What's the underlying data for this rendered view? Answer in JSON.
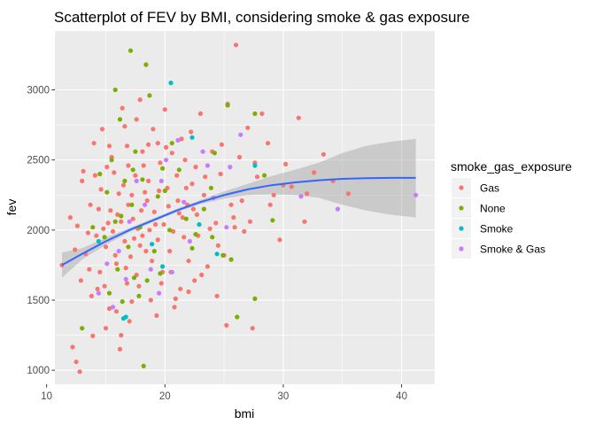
{
  "chart_data": {
    "type": "scatter",
    "title": "Scatterplot of FEV by BMI, considering smoke & gas exposure",
    "xlabel": "bmi",
    "ylabel": "fev",
    "xlim": [
      10.7,
      42.8
    ],
    "ylim": [
      900,
      3420
    ],
    "x_ticks": [
      10,
      20,
      30,
      40
    ],
    "y_ticks": [
      1000,
      1500,
      2000,
      2500,
      3000
    ],
    "grid": true,
    "legend": {
      "title": "smoke_gas_exposure",
      "position": "right",
      "entries": [
        "Gas",
        "None",
        "Smoke",
        "Smoke & Gas"
      ]
    },
    "colors": {
      "Gas": "#F8766D",
      "None": "#7CAE00",
      "Smoke": "#00BFC4",
      "Smoke & Gas": "#C77CFF",
      "smooth": "#3366FF",
      "band": "#999999"
    },
    "smooth": {
      "method": "loess",
      "x": [
        11.3,
        13,
        15,
        17,
        19,
        21,
        23,
        25,
        27,
        29,
        31,
        33,
        35,
        37,
        39,
        41.2
      ],
      "y": [
        1750,
        1830,
        1920,
        2000,
        2070,
        2140,
        2200,
        2250,
        2290,
        2320,
        2340,
        2355,
        2365,
        2370,
        2372,
        2372
      ],
      "ymin": [
        1660,
        1790,
        1895,
        1985,
        2058,
        2128,
        2185,
        2225,
        2250,
        2255,
        2250,
        2230,
        2180,
        2140,
        2110,
        2090
      ],
      "ymax": [
        1840,
        1870,
        1945,
        2015,
        2082,
        2152,
        2215,
        2275,
        2330,
        2385,
        2430,
        2480,
        2550,
        2600,
        2630,
        2650
      ]
    },
    "series": [
      {
        "name": "Gas",
        "points": [
          [
            11.3,
            1750
          ],
          [
            12.2,
            1165
          ],
          [
            12.5,
            1060
          ],
          [
            12.8,
            990
          ],
          [
            13.0,
            2350
          ],
          [
            12.6,
            2030
          ],
          [
            12.9,
            1640
          ],
          [
            13.3,
            1830
          ],
          [
            13.8,
            1530
          ],
          [
            13.9,
            1245
          ],
          [
            14.0,
            2620
          ],
          [
            14.4,
            2150
          ],
          [
            14.7,
            2720
          ],
          [
            14.9,
            1600
          ],
          [
            15.1,
            2450
          ],
          [
            15.3,
            1440
          ],
          [
            15.5,
            2520
          ],
          [
            15.8,
            1820
          ],
          [
            16.1,
            2260
          ],
          [
            16.2,
            1150
          ],
          [
            16.4,
            2870
          ],
          [
            16.7,
            1730
          ],
          [
            16.8,
            2600
          ],
          [
            17.0,
            1350
          ],
          [
            17.2,
            2250
          ],
          [
            17.4,
            1940
          ],
          [
            17.6,
            2790
          ],
          [
            17.8,
            1600
          ],
          [
            18.0,
            2140
          ],
          [
            18.2,
            2460
          ],
          [
            18.4,
            1850
          ],
          [
            18.6,
            2610
          ],
          [
            18.8,
            1500
          ],
          [
            19.0,
            2720
          ],
          [
            19.2,
            2040
          ],
          [
            19.4,
            1930
          ],
          [
            19.6,
            2480
          ],
          [
            19.8,
            1700
          ],
          [
            20.0,
            2860
          ],
          [
            20.2,
            2300
          ],
          [
            20.4,
            1850
          ],
          [
            20.6,
            2550
          ],
          [
            20.8,
            1450
          ],
          [
            21.0,
            2390
          ],
          [
            21.2,
            2120
          ],
          [
            21.4,
            2650
          ],
          [
            21.6,
            1950
          ],
          [
            21.8,
            2300
          ],
          [
            22.0,
            1780
          ],
          [
            22.2,
            2700
          ],
          [
            22.4,
            2150
          ],
          [
            22.6,
            2450
          ],
          [
            22.8,
            1960
          ],
          [
            23.0,
            2830
          ],
          [
            23.3,
            2250
          ],
          [
            23.6,
            1740
          ],
          [
            24.0,
            2560
          ],
          [
            24.3,
            2050
          ],
          [
            24.7,
            2400
          ],
          [
            25.0,
            1820
          ],
          [
            25.3,
            2900
          ],
          [
            25.6,
            2180
          ],
          [
            26.0,
            3320
          ],
          [
            26.3,
            2520
          ],
          [
            26.7,
            1990
          ],
          [
            27.0,
            2730
          ],
          [
            27.4,
            1300
          ],
          [
            27.8,
            2380
          ],
          [
            28.2,
            2830
          ],
          [
            28.7,
            2620
          ],
          [
            29.2,
            2250
          ],
          [
            29.7,
            1930
          ],
          [
            30.2,
            2470
          ],
          [
            30.7,
            2310
          ],
          [
            31.3,
            2800
          ],
          [
            31.8,
            2060
          ],
          [
            32.6,
            2410
          ],
          [
            33.4,
            2540
          ],
          [
            34.2,
            2350
          ],
          [
            35.5,
            2260
          ],
          [
            15.2,
            2050
          ],
          [
            15.6,
            1990
          ],
          [
            16.0,
            2110
          ],
          [
            16.3,
            2060
          ],
          [
            16.6,
            1920
          ],
          [
            16.9,
            2180
          ],
          [
            17.3,
            2080
          ],
          [
            17.7,
            2010
          ],
          [
            18.1,
            1960
          ],
          [
            18.5,
            2210
          ],
          [
            14.5,
            1700
          ],
          [
            15.0,
            1880
          ],
          [
            15.4,
            2140
          ],
          [
            15.9,
            1760
          ],
          [
            16.5,
            2320
          ],
          [
            17.1,
            1810
          ],
          [
            17.5,
            2390
          ],
          [
            17.9,
            1890
          ],
          [
            18.3,
            2270
          ],
          [
            18.7,
            2000
          ],
          [
            19.1,
            2130
          ],
          [
            19.5,
            2280
          ],
          [
            19.9,
            2040
          ],
          [
            20.3,
            2170
          ],
          [
            20.7,
            1990
          ],
          [
            21.1,
            2210
          ],
          [
            21.5,
            2090
          ],
          [
            21.9,
            2180
          ],
          [
            22.3,
            2330
          ],
          [
            22.7,
            2110
          ],
          [
            14.2,
            1960
          ],
          [
            14.6,
            2290
          ],
          [
            15.7,
            2410
          ],
          [
            16.8,
            1620
          ],
          [
            17.6,
            1680
          ],
          [
            18.9,
            1780
          ],
          [
            19.7,
            1620
          ],
          [
            20.5,
            1700
          ],
          [
            21.3,
            1580
          ],
          [
            22.5,
            1640
          ],
          [
            23.8,
            2010
          ],
          [
            24.5,
            1890
          ],
          [
            25.8,
            2090
          ],
          [
            26.5,
            2210
          ],
          [
            27.2,
            2060
          ],
          [
            13.5,
            1980
          ],
          [
            13.7,
            2180
          ],
          [
            14.8,
            2010
          ],
          [
            16.9,
            2460
          ],
          [
            18.6,
            2350
          ],
          [
            15.0,
            1300
          ],
          [
            15.9,
            1420
          ],
          [
            17.2,
            1490
          ],
          [
            19.3,
            1390
          ],
          [
            20.9,
            1510
          ],
          [
            22.0,
            1560
          ],
          [
            23.1,
            1680
          ],
          [
            24.4,
            1530
          ],
          [
            25.2,
            1320
          ],
          [
            16.3,
            1250
          ],
          [
            17.9,
            2930
          ],
          [
            19.4,
            2620
          ],
          [
            21.7,
            2500
          ],
          [
            23.4,
            2380
          ],
          [
            24.8,
            2610
          ],
          [
            25.9,
            2020
          ],
          [
            27.6,
            2480
          ],
          [
            28.9,
            2180
          ],
          [
            30.0,
            2320
          ],
          [
            32.0,
            2260
          ],
          [
            14.1,
            2390
          ],
          [
            15.3,
            2600
          ],
          [
            16.6,
            2740
          ],
          [
            18.1,
            2560
          ],
          [
            20.1,
            2590
          ],
          [
            12.0,
            2090
          ],
          [
            12.4,
            1860
          ],
          [
            13.1,
            2420
          ],
          [
            13.6,
            1720
          ],
          [
            14.3,
            1580
          ]
        ]
      },
      {
        "name": "None",
        "points": [
          [
            15.8,
            3000
          ],
          [
            17.1,
            3280
          ],
          [
            18.4,
            3180
          ],
          [
            18.7,
            2960
          ],
          [
            16.2,
            2790
          ],
          [
            17.5,
            2560
          ],
          [
            19.8,
            2440
          ],
          [
            25.3,
            2890
          ],
          [
            27.6,
            2830
          ],
          [
            26.1,
            1380
          ],
          [
            27.6,
            1510
          ],
          [
            18.2,
            1030
          ],
          [
            13.0,
            1300
          ],
          [
            15.3,
            1550
          ],
          [
            14.9,
            1950
          ],
          [
            15.8,
            2060
          ],
          [
            16.3,
            2100
          ],
          [
            16.9,
            1880
          ],
          [
            17.2,
            2180
          ],
          [
            17.9,
            2020
          ],
          [
            18.5,
            1640
          ],
          [
            19.4,
            2240
          ],
          [
            20.4,
            2000
          ],
          [
            21.2,
            2430
          ],
          [
            22.3,
            1870
          ],
          [
            23.3,
            2150
          ],
          [
            24.2,
            2550
          ],
          [
            24.9,
            1820
          ],
          [
            28.4,
            2390
          ],
          [
            29.1,
            2070
          ],
          [
            13.9,
            2020
          ],
          [
            14.5,
            2400
          ],
          [
            15.1,
            2270
          ],
          [
            16.0,
            1720
          ],
          [
            16.6,
            2350
          ],
          [
            17.4,
            1660
          ],
          [
            18.1,
            2360
          ],
          [
            19.1,
            1850
          ],
          [
            20.0,
            2280
          ],
          [
            21.8,
            2080
          ],
          [
            16.4,
            1490
          ],
          [
            17.8,
            1530
          ],
          [
            19.6,
            1690
          ],
          [
            22.6,
            1970
          ],
          [
            15.5,
            2500
          ],
          [
            23.9,
            2300
          ],
          [
            25.6,
            1790
          ],
          [
            24.0,
            1950
          ],
          [
            20.6,
            2620
          ],
          [
            17.3,
            2430
          ]
        ]
      },
      {
        "name": "Smoke",
        "points": [
          [
            20.5,
            3050
          ],
          [
            22.3,
            2660
          ],
          [
            27.6,
            2460
          ],
          [
            16.5,
            1370
          ],
          [
            19.8,
            1740
          ],
          [
            18.9,
            1900
          ],
          [
            22.9,
            2040
          ],
          [
            24.4,
            1830
          ],
          [
            14.4,
            1920
          ],
          [
            16.7,
            1380
          ]
        ]
      },
      {
        "name": "Smoke & Gas",
        "points": [
          [
            41.2,
            2250
          ],
          [
            34.6,
            2150
          ],
          [
            31.5,
            2240
          ],
          [
            26.4,
            2680
          ],
          [
            25.5,
            2450
          ],
          [
            23.2,
            2560
          ],
          [
            21.1,
            2640
          ],
          [
            19.7,
            2350
          ],
          [
            18.3,
            2180
          ],
          [
            17.0,
            2060
          ],
          [
            16.1,
            1850
          ],
          [
            15.1,
            1760
          ],
          [
            14.4,
            1550
          ],
          [
            19.5,
            1550
          ],
          [
            20.6,
            1700
          ],
          [
            22.1,
            1920
          ],
          [
            24.1,
            2230
          ],
          [
            25.2,
            2020
          ],
          [
            18.8,
            1720
          ],
          [
            16.7,
            1650
          ],
          [
            21.6,
            2200
          ],
          [
            23.6,
            2460
          ],
          [
            17.6,
            2350
          ],
          [
            15.6,
            1450
          ],
          [
            20.1,
            2500
          ]
        ]
      }
    ]
  }
}
